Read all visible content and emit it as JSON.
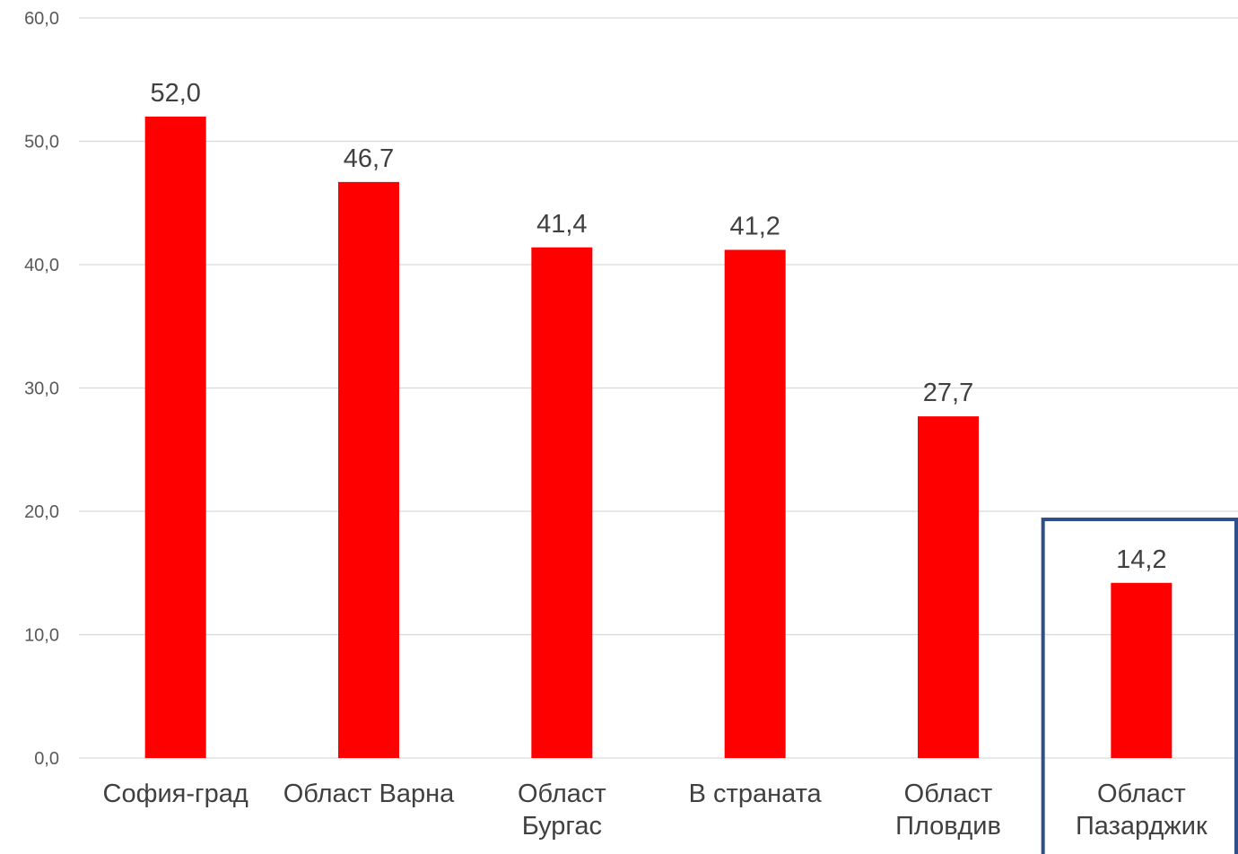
{
  "chart_data": {
    "type": "bar",
    "categories": [
      [
        "София-град"
      ],
      [
        "Област Варна"
      ],
      [
        "Област",
        "Бургас"
      ],
      [
        "В страната"
      ],
      [
        "Област",
        "Пловдив"
      ],
      [
        "Област",
        "Пазарджик"
      ]
    ],
    "values": [
      52.0,
      46.7,
      41.4,
      41.2,
      27.7,
      14.2
    ],
    "value_labels": [
      "52,0",
      "46,7",
      "41,4",
      "41,2",
      "27,7",
      "14,2"
    ],
    "y_ticks": [
      0,
      10,
      20,
      30,
      40,
      50,
      60
    ],
    "y_tick_labels": [
      "0,0",
      "10,0",
      "20,0",
      "30,0",
      "40,0",
      "50,0",
      "60,0"
    ],
    "ylim": [
      0,
      60
    ],
    "grid": true,
    "highlight_index": 5,
    "colors": {
      "bar": "#ff0000",
      "grid": "#d9d9d9",
      "highlight_border": "#2f4f8a",
      "tick_text": "#595959",
      "category_text": "#404040",
      "value_text": "#404040"
    }
  }
}
